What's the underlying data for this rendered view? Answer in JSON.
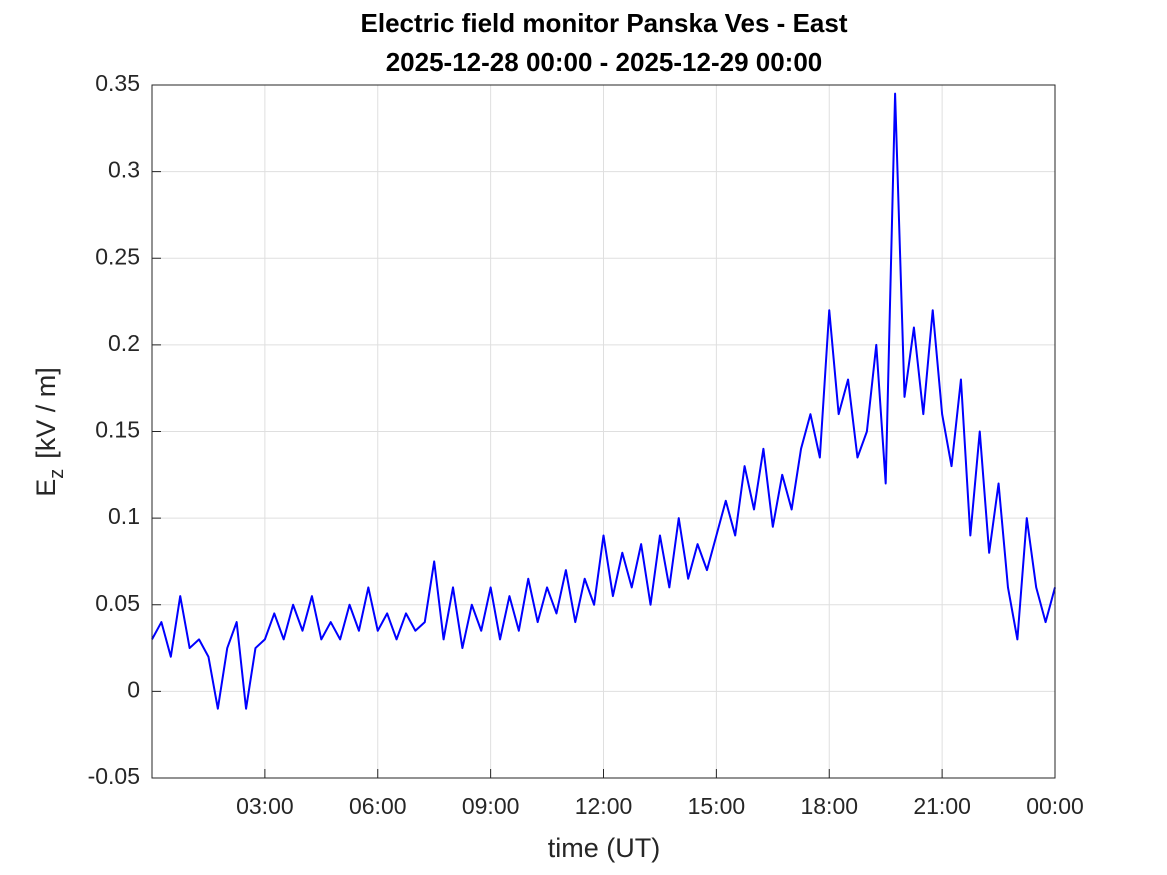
{
  "chart_data": {
    "type": "line",
    "title": "Electric field monitor Panska Ves - East",
    "subtitle": "2025-12-28 00:00 - 2025-12-29 00:00",
    "xlabel": "time (UT)",
    "ylabel": "E",
    "ylabel_sub": "z",
    "ylabel_unit": "[kV / m]",
    "xlim": [
      0,
      24
    ],
    "xticks": [
      {
        "value": 3,
        "label": "03:00"
      },
      {
        "value": 6,
        "label": "06:00"
      },
      {
        "value": 9,
        "label": "09:00"
      },
      {
        "value": 12,
        "label": "12:00"
      },
      {
        "value": 15,
        "label": "15:00"
      },
      {
        "value": 18,
        "label": "18:00"
      },
      {
        "value": 21,
        "label": "21:00"
      },
      {
        "value": 24,
        "label": "00:00"
      }
    ],
    "ylim": [
      -0.05,
      0.35
    ],
    "yticks": [
      -0.05,
      0,
      0.05,
      0.1,
      0.15,
      0.2,
      0.25,
      0.3,
      0.35
    ],
    "grid": true,
    "series": [
      {
        "color": "#0000ff",
        "x": [
          0,
          0.25,
          0.5,
          0.75,
          1,
          1.25,
          1.5,
          1.75,
          2,
          2.25,
          2.5,
          2.75,
          3,
          3.25,
          3.5,
          3.75,
          4,
          4.25,
          4.5,
          4.75,
          5,
          5.25,
          5.5,
          5.75,
          6,
          6.25,
          6.5,
          6.75,
          7,
          7.25,
          7.5,
          7.75,
          8,
          8.25,
          8.5,
          8.75,
          9,
          9.25,
          9.5,
          9.75,
          10,
          10.25,
          10.5,
          10.75,
          11,
          11.25,
          11.5,
          11.75,
          12,
          12.25,
          12.5,
          12.75,
          13,
          13.25,
          13.5,
          13.75,
          14,
          14.25,
          14.5,
          14.75,
          15,
          15.25,
          15.5,
          15.75,
          16,
          16.25,
          16.5,
          16.75,
          17,
          17.25,
          17.5,
          17.75,
          18,
          18.25,
          18.5,
          18.75,
          19,
          19.25,
          19.5,
          19.75,
          20,
          20.25,
          20.5,
          20.75,
          21,
          21.25,
          21.5,
          21.75,
          22,
          22.25,
          22.5,
          22.75,
          23,
          23.25,
          23.5,
          23.75,
          24
        ],
        "values": [
          0.03,
          0.04,
          0.02,
          0.055,
          0.025,
          0.03,
          0.02,
          -0.01,
          0.025,
          0.04,
          -0.01,
          0.025,
          0.03,
          0.045,
          0.03,
          0.05,
          0.035,
          0.055,
          0.03,
          0.04,
          0.03,
          0.05,
          0.035,
          0.06,
          0.035,
          0.045,
          0.03,
          0.045,
          0.035,
          0.04,
          0.075,
          0.03,
          0.06,
          0.025,
          0.05,
          0.035,
          0.06,
          0.03,
          0.055,
          0.035,
          0.065,
          0.04,
          0.06,
          0.045,
          0.07,
          0.04,
          0.065,
          0.05,
          0.09,
          0.055,
          0.08,
          0.06,
          0.085,
          0.05,
          0.09,
          0.06,
          0.1,
          0.065,
          0.085,
          0.07,
          0.09,
          0.11,
          0.09,
          0.13,
          0.105,
          0.14,
          0.095,
          0.125,
          0.105,
          0.14,
          0.16,
          0.135,
          0.22,
          0.16,
          0.18,
          0.135,
          0.15,
          0.2,
          0.12,
          0.345,
          0.17,
          0.21,
          0.16,
          0.22,
          0.16,
          0.13,
          0.18,
          0.09,
          0.15,
          0.08,
          0.12,
          0.06,
          0.03,
          0.1,
          0.06,
          0.04,
          0.06
        ]
      }
    ]
  }
}
